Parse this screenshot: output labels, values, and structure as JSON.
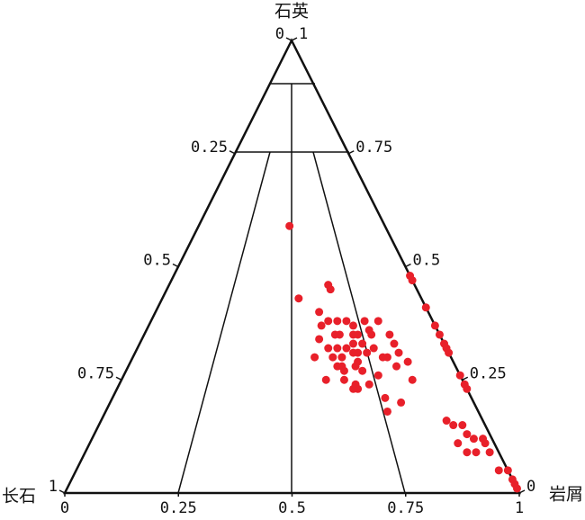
{
  "chart_data": {
    "type": "ternary",
    "top_label": "石英",
    "left_label": "长石",
    "right_label": "岩屑",
    "left_ticks": [
      0,
      0.25,
      0.5,
      0.75,
      1
    ],
    "right_ticks": [
      1,
      0.75,
      0.5,
      0.25,
      0
    ],
    "bottom_ticks": [
      0,
      0.25,
      0.5,
      0.75,
      1
    ],
    "series": [
      {
        "color": "#e8202a",
        "q": [
          0.59,
          0.43,
          0.46,
          0.45,
          0.4,
          0.37,
          0.38,
          0.38,
          0.38,
          0.37,
          0.38,
          0.38,
          0.36,
          0.34,
          0.35,
          0.35,
          0.35,
          0.35,
          0.35,
          0.35,
          0.33,
          0.3,
          0.32,
          0.32,
          0.32,
          0.33,
          0.33,
          0.32,
          0.3,
          0.31,
          0.29,
          0.3,
          0.3,
          0.31,
          0.31,
          0.31,
          0.3,
          0.28,
          0.25,
          0.25,
          0.28,
          0.27,
          0.28,
          0.27,
          0.25,
          0.24,
          0.23,
          0.24,
          0.26,
          0.23,
          0.21,
          0.2,
          0.18,
          0.29,
          0.28,
          0.48,
          0.47,
          0.41,
          0.37,
          0.35,
          0.33,
          0.32,
          0.31,
          0.26,
          0.24,
          0.23,
          0.16,
          0.15,
          0.15,
          0.13,
          0.12,
          0.12,
          0.11,
          0.11,
          0.09,
          0.09,
          0.09,
          0.05,
          0.05,
          0.03,
          0.02,
          0.01
        ],
        "r": [
          0.2,
          0.3,
          0.35,
          0.36,
          0.36,
          0.38,
          0.39,
          0.41,
          0.43,
          0.45,
          0.47,
          0.5,
          0.49,
          0.39,
          0.42,
          0.43,
          0.46,
          0.47,
          0.5,
          0.54,
          0.56,
          0.4,
          0.42,
          0.44,
          0.46,
          0.47,
          0.49,
          0.52,
          0.56,
          0.58,
          0.61,
          0.44,
          0.46,
          0.48,
          0.49,
          0.51,
          0.55,
          0.59,
          0.64,
          0.45,
          0.46,
          0.48,
          0.5,
          0.52,
          0.49,
          0.52,
          0.53,
          0.55,
          0.56,
          0.52,
          0.6,
          0.64,
          0.62,
          0.5,
          0.47,
          0.52,
          0.53,
          0.59,
          0.63,
          0.65,
          0.67,
          0.68,
          0.69,
          0.74,
          0.76,
          0.77,
          0.76,
          0.78,
          0.8,
          0.82,
          0.84,
          0.86,
          0.87,
          0.81,
          0.84,
          0.86,
          0.89,
          0.93,
          0.95,
          0.97,
          0.98,
          0.99
        ]
      }
    ]
  }
}
